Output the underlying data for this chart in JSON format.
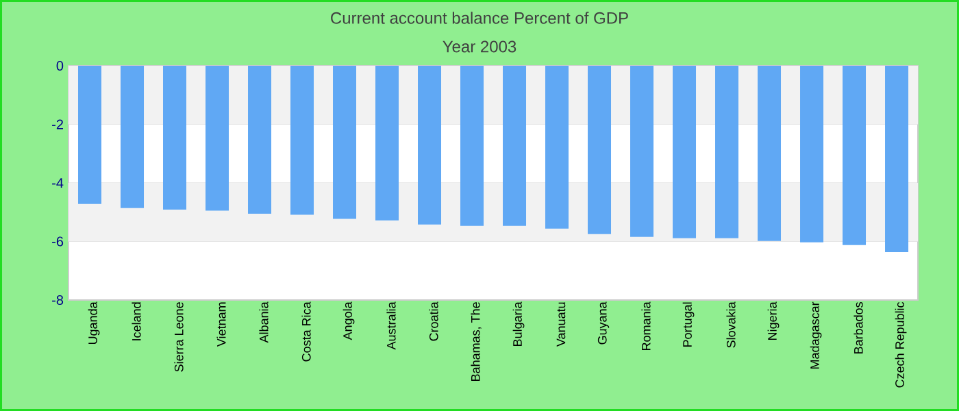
{
  "chart_data": {
    "type": "bar",
    "title": "Current account balance  Percent of GDP",
    "subtitle": "Year 2003",
    "categories": [
      "Uganda",
      "Iceland",
      "Sierra Leone",
      "Vietnam",
      "Albania",
      "Costa Rica",
      "Angola",
      "Australia",
      "Croatia",
      "Bahamas, The",
      "Bulgaria",
      "Vanuatu",
      "Guyana",
      "Romania",
      "Portugal",
      "Slovakia",
      "Nigeria",
      "Madagascar",
      "Barbados",
      "Czech Republic"
    ],
    "values": [
      -4.72,
      -4.86,
      -4.91,
      -4.95,
      -5.05,
      -5.09,
      -5.23,
      -5.28,
      -5.42,
      -5.47,
      -5.47,
      -5.56,
      -5.75,
      -5.84,
      -5.89,
      -5.89,
      -5.98,
      -6.03,
      -6.12,
      -6.36
    ],
    "color": "#60a8f4",
    "ylim": [
      -8,
      0
    ],
    "yticks": [
      0,
      -2,
      -4,
      -6,
      -8
    ],
    "grid": "y"
  }
}
